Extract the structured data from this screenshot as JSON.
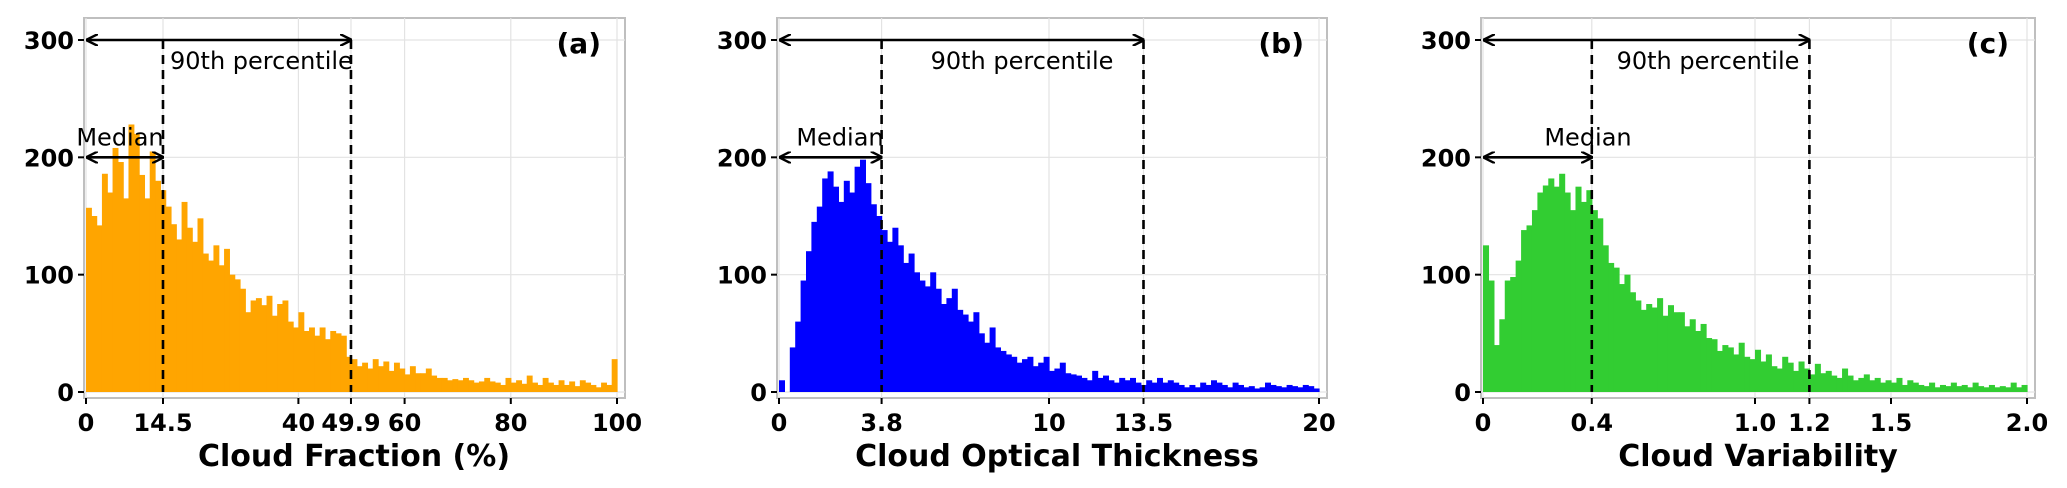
{
  "chart_data": [
    {
      "type": "bar",
      "panel_label": "(a)",
      "xlabel": "Cloud Fraction (%)",
      "ylabel": "",
      "xlim": [
        0,
        100
      ],
      "ylim": [
        0,
        300
      ],
      "x_ticks": [
        0,
        14.5,
        40,
        49.9,
        60,
        80,
        100
      ],
      "x_tick_labels": [
        "0",
        "14.5",
        "40",
        "49.9",
        "60",
        "80",
        "100"
      ],
      "y_ticks": [
        0,
        100,
        200,
        300
      ],
      "y_tick_labels": [
        "0",
        "100",
        "200",
        "300"
      ],
      "grid": true,
      "color": "#FFA500",
      "bin_start": 0,
      "bin_width": 1,
      "values": [
        157,
        150,
        142,
        186,
        170,
        208,
        196,
        165,
        228,
        220,
        185,
        165,
        205,
        180,
        172,
        158,
        143,
        130,
        162,
        140,
        128,
        148,
        118,
        112,
        125,
        108,
        122,
        100,
        96,
        88,
        68,
        78,
        80,
        74,
        82,
        65,
        75,
        78,
        60,
        55,
        68,
        52,
        55,
        48,
        55,
        45,
        52,
        50,
        48,
        30,
        28,
        22,
        25,
        20,
        28,
        22,
        26,
        18,
        25,
        20,
        15,
        22,
        16,
        16,
        20,
        14,
        12,
        12,
        10,
        11,
        10,
        12,
        10,
        8,
        9,
        12,
        9,
        8,
        6,
        12,
        8,
        10,
        7,
        14,
        8,
        6,
        12,
        8,
        6,
        10,
        6,
        9,
        5,
        10,
        8,
        6,
        4,
        8,
        6,
        28
      ],
      "median": 14.5,
      "p90": 49.9,
      "annotations": [
        "Median",
        "90th percentile"
      ]
    },
    {
      "type": "bar",
      "panel_label": "(b)",
      "xlabel": "Cloud Optical Thickness",
      "ylabel": "",
      "xlim": [
        0,
        20
      ],
      "ylim": [
        0,
        300
      ],
      "x_ticks": [
        0,
        3.8,
        10,
        13.5,
        20
      ],
      "x_tick_labels": [
        "0",
        "3.8",
        "10",
        "13.5",
        "20"
      ],
      "y_ticks": [
        0,
        100,
        200,
        300
      ],
      "y_tick_labels": [
        "0",
        "100",
        "200",
        "300"
      ],
      "grid": true,
      "color": "#0000FF",
      "bin_start": 0,
      "bin_width": 0.2,
      "values": [
        10,
        0,
        38,
        60,
        95,
        120,
        145,
        158,
        182,
        188,
        175,
        162,
        180,
        170,
        192,
        198,
        178,
        160,
        150,
        138,
        128,
        140,
        125,
        110,
        118,
        102,
        95,
        90,
        102,
        88,
        75,
        80,
        88,
        70,
        66,
        60,
        68,
        50,
        42,
        55,
        38,
        35,
        32,
        30,
        25,
        28,
        30,
        22,
        25,
        30,
        18,
        20,
        25,
        16,
        15,
        14,
        12,
        10,
        18,
        12,
        14,
        10,
        8,
        12,
        10,
        12,
        8,
        6,
        10,
        8,
        12,
        8,
        10,
        8,
        6,
        4,
        6,
        4,
        8,
        6,
        10,
        8,
        6,
        4,
        8,
        6,
        4,
        5,
        3,
        4,
        8,
        6,
        5,
        4,
        6,
        5,
        4,
        6,
        5,
        3
      ],
      "median": 3.8,
      "p90": 13.5,
      "annotations": [
        "Median",
        "90th percentile"
      ]
    },
    {
      "type": "bar",
      "panel_label": "(c)",
      "xlabel": "Cloud Variability",
      "ylabel": "",
      "xlim": [
        0,
        2.0
      ],
      "ylim": [
        0,
        300
      ],
      "x_ticks": [
        0,
        0.4,
        1.0,
        1.2,
        1.5,
        2.0
      ],
      "x_tick_labels": [
        "0",
        "0.4",
        "1.0",
        "1.2",
        "1.5",
        "2.0"
      ],
      "y_ticks": [
        0,
        100,
        200,
        300
      ],
      "y_tick_labels": [
        "0",
        "100",
        "200",
        "300"
      ],
      "grid": true,
      "color": "#32CD32",
      "bin_start": 0,
      "bin_width": 0.02,
      "values": [
        125,
        95,
        40,
        62,
        95,
        98,
        112,
        138,
        142,
        155,
        170,
        176,
        182,
        175,
        186,
        170,
        155,
        175,
        162,
        172,
        155,
        148,
        125,
        110,
        106,
        92,
        100,
        85,
        78,
        70,
        75,
        72,
        80,
        65,
        74,
        68,
        68,
        56,
        62,
        52,
        58,
        46,
        45,
        35,
        40,
        38,
        32,
        42,
        30,
        28,
        36,
        26,
        32,
        22,
        20,
        30,
        25,
        18,
        26,
        20,
        15,
        24,
        16,
        18,
        14,
        12,
        20,
        14,
        10,
        12,
        15,
        10,
        12,
        8,
        10,
        8,
        12,
        6,
        10,
        8,
        6,
        5,
        8,
        4,
        6,
        5,
        8,
        5,
        6,
        4,
        8,
        5,
        4,
        6,
        4,
        5,
        4,
        8,
        4,
        6
      ],
      "median": 0.4,
      "p90": 1.2,
      "annotations": [
        "Median",
        "90th percentile"
      ]
    }
  ]
}
